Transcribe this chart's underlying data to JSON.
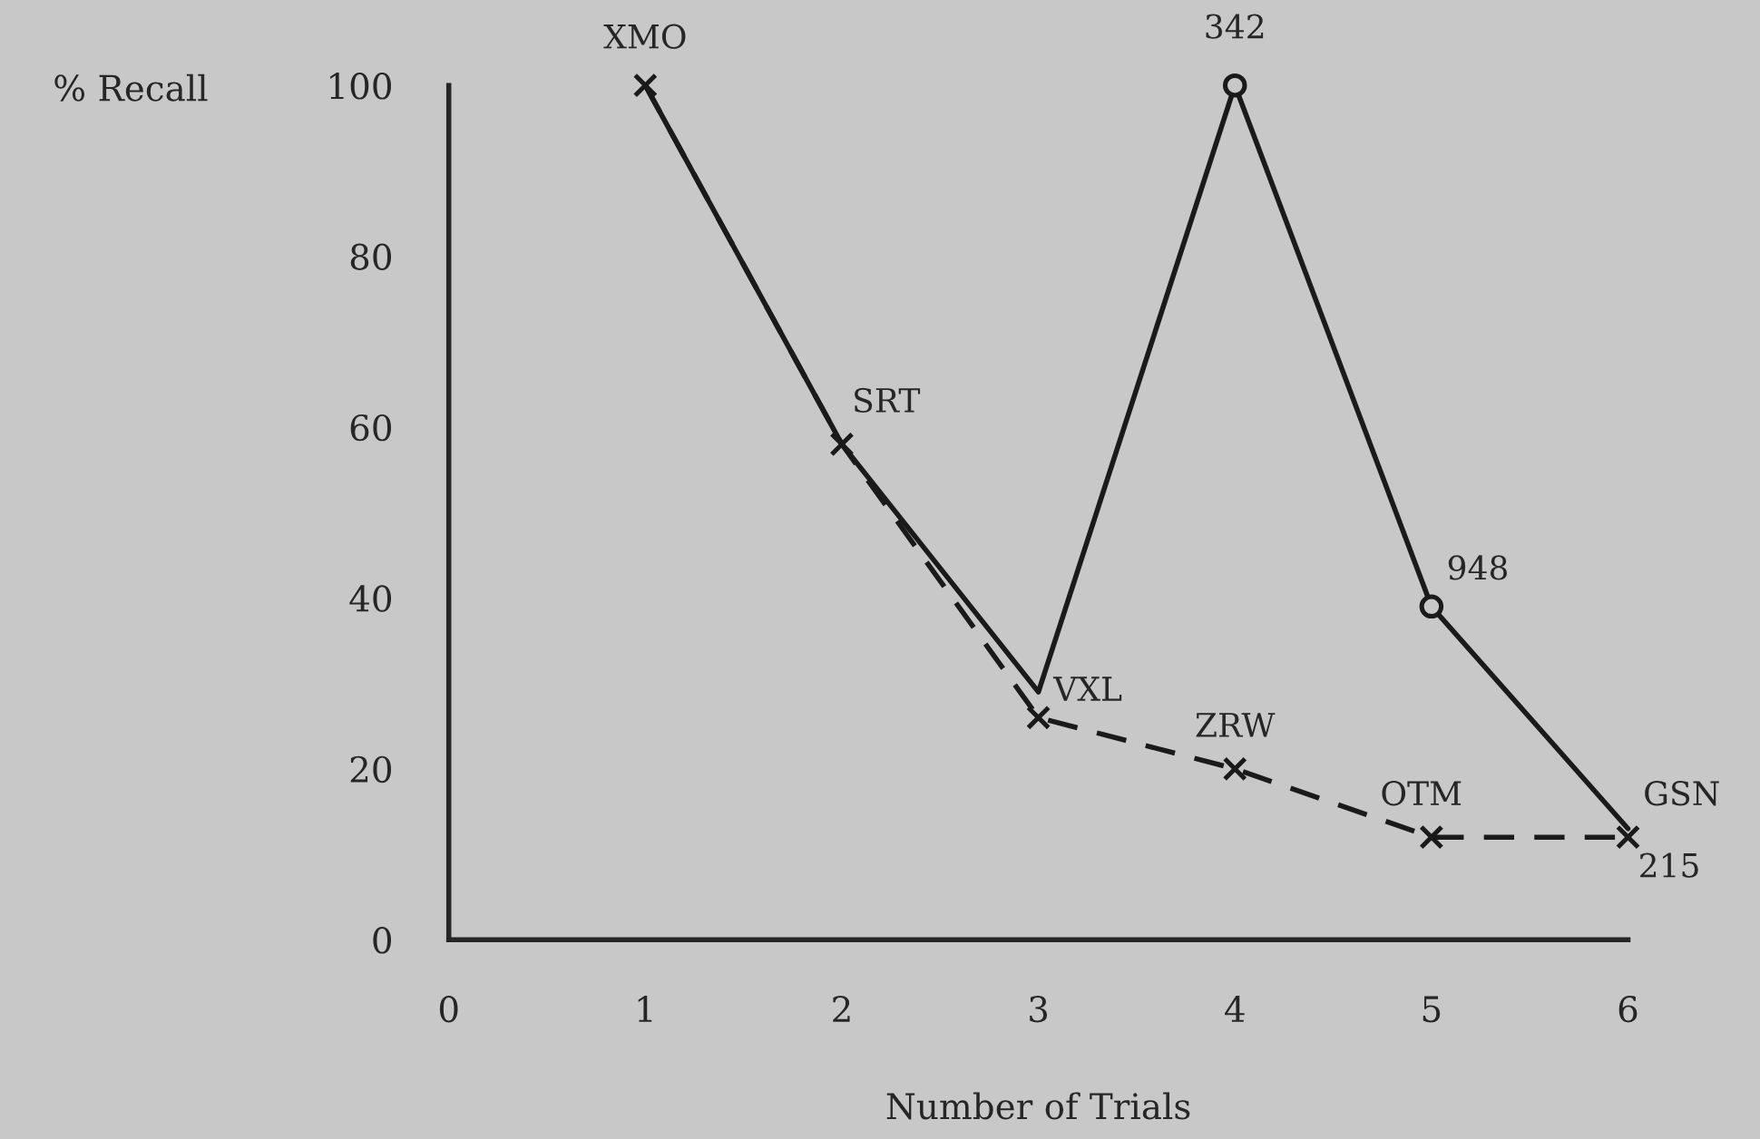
{
  "chart_data": {
    "type": "line",
    "xlabel": "Number of Trials",
    "ylabel": "% Recall",
    "x": [
      1,
      2,
      3,
      4,
      5,
      6
    ],
    "series": [
      {
        "color": "#1a1a1a",
        "line_style": "solid",
        "marker": "none",
        "values": [
          100,
          58,
          29,
          100,
          39,
          13
        ]
      },
      {
        "type": "scatter",
        "color": "#1a1a1a",
        "marker": "circle",
        "values": [
          null,
          null,
          null,
          100,
          39,
          null
        ]
      },
      {
        "color": "#1a1a1a",
        "line_style": "dashed",
        "marker": "cross",
        "values": [
          100,
          58,
          26,
          20,
          12,
          12
        ]
      }
    ],
    "xlim": [
      0,
      6
    ],
    "ylim": [
      0,
      100
    ],
    "xticks": [
      0,
      1,
      2,
      3,
      4,
      5,
      6
    ],
    "yticks": [
      0,
      20,
      40,
      60,
      80,
      100
    ],
    "legend": false,
    "annotations": [
      {
        "text": "XMO",
        "x": 1,
        "y": 100
      },
      {
        "text": "SRT",
        "x": 2,
        "y": 58
      },
      {
        "text": "VXL",
        "x": 3,
        "y": 26
      },
      {
        "text": "ZRW",
        "x": 4,
        "y": 20
      },
      {
        "text": "OTM",
        "x": 5,
        "y": 12
      },
      {
        "text": "GSN",
        "x": 6,
        "y": 12
      },
      {
        "text": "342",
        "x": 4,
        "y": 100
      },
      {
        "text": "948",
        "x": 5,
        "y": 39
      },
      {
        "text": "215",
        "x": 6,
        "y": 13
      }
    ]
  }
}
